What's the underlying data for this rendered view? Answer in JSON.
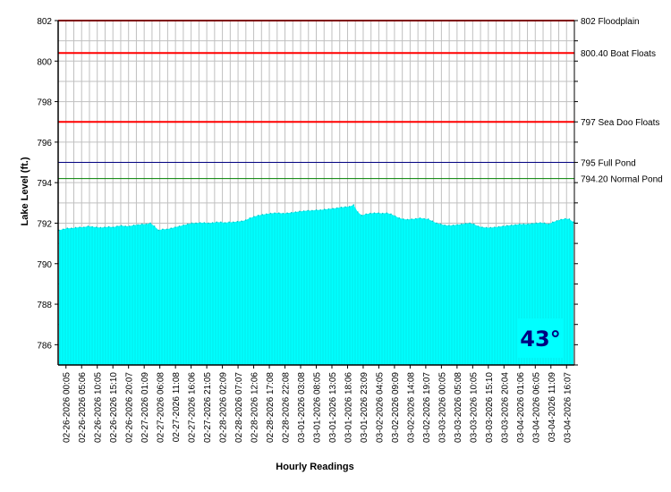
{
  "chart_data": {
    "type": "area",
    "xlabel": "Hourly Readings",
    "ylabel": "Lake Level (ft.)",
    "ylim": [
      785,
      802
    ],
    "yticks": [
      786,
      788,
      790,
      792,
      794,
      796,
      798,
      800,
      802
    ],
    "grid": true,
    "fill_color": "#00ffff",
    "x_tick_labels": [
      "02-26-2026 00:05",
      "02-26-2026 05:06",
      "02-26-2026 10:05",
      "02-26-2026 15:10",
      "02-26-2026 20:07",
      "02-27-2026 01:09",
      "02-27-2026 06:08",
      "02-27-2026 11:08",
      "02-27-2026 16:06",
      "02-27-2026 21:05",
      "02-28-2026 02:09",
      "02-28-2026 07:07",
      "02-28-2026 12:06",
      "02-28-2026 17:08",
      "02-28-2026 22:08",
      "03-01-2026 03:08",
      "03-01-2026 08:05",
      "03-01-2026 13:05",
      "03-01-2026 18:06",
      "03-01-2026 23:09",
      "03-02-2026 04:05",
      "03-02-2026 09:09",
      "03-02-2026 14:08",
      "03-02-2026 19:07",
      "03-03-2026 00:05",
      "03-03-2026 05:08",
      "03-03-2026 10:05",
      "03-03-2026 15:10",
      "03-03-2026 20:04",
      "03-04-2026 01:06",
      "03-04-2026 06:05",
      "03-04-2026 11:09",
      "03-04-2026 16:07"
    ],
    "values": [
      791.65,
      791.7,
      791.75,
      791.75,
      791.78,
      791.8,
      791.8,
      791.85,
      791.82,
      791.8,
      791.78,
      791.8,
      791.82,
      791.8,
      791.85,
      791.88,
      791.85,
      791.85,
      791.9,
      791.92,
      791.95,
      791.95,
      792.0,
      791.85,
      791.65,
      791.7,
      791.7,
      791.75,
      791.8,
      791.85,
      791.9,
      791.95,
      792.0,
      792.0,
      792.02,
      792.02,
      792.0,
      792.02,
      792.05,
      792.05,
      792.02,
      792.05,
      792.05,
      792.08,
      792.1,
      792.15,
      792.25,
      792.32,
      792.38,
      792.42,
      792.45,
      792.48,
      792.5,
      792.5,
      792.48,
      792.5,
      792.52,
      792.55,
      792.58,
      792.6,
      792.62,
      792.62,
      792.65,
      792.65,
      792.68,
      792.7,
      792.72,
      792.75,
      792.78,
      792.8,
      792.82,
      792.9,
      792.55,
      792.38,
      792.45,
      792.48,
      792.5,
      792.5,
      792.48,
      792.5,
      792.45,
      792.35,
      792.25,
      792.2,
      792.18,
      792.2,
      792.22,
      792.25,
      792.22,
      792.2,
      792.1,
      792.0,
      791.95,
      791.9,
      791.88,
      791.9,
      791.92,
      791.95,
      791.98,
      792.0,
      791.95,
      791.85,
      791.8,
      791.78,
      791.78,
      791.8,
      791.82,
      791.85,
      791.88,
      791.9,
      791.92,
      791.95,
      791.95,
      791.95,
      791.98,
      792.0,
      792.02,
      792.0,
      791.95,
      792.05,
      792.12,
      792.18,
      792.22,
      792.2,
      792.05
    ],
    "reference_lines": [
      {
        "value": 802,
        "label": "802 Floodplain",
        "color": "#ff0000",
        "width": 2
      },
      {
        "value": 800.4,
        "label": "800.40 Boat Floats",
        "color": "#ff0000",
        "width": 2
      },
      {
        "value": 797,
        "label": "797 Sea Doo Floats",
        "color": "#ff0000",
        "width": 2
      },
      {
        "value": 795,
        "label": "795 Full Pond",
        "color": "#000080",
        "width": 1
      },
      {
        "value": 794.2,
        "label": "794.20 Normal Pond",
        "color": "#008000",
        "width": 1
      }
    ],
    "badge": {
      "text": "43°",
      "bg": "#00ffff",
      "color": "#000080"
    }
  }
}
